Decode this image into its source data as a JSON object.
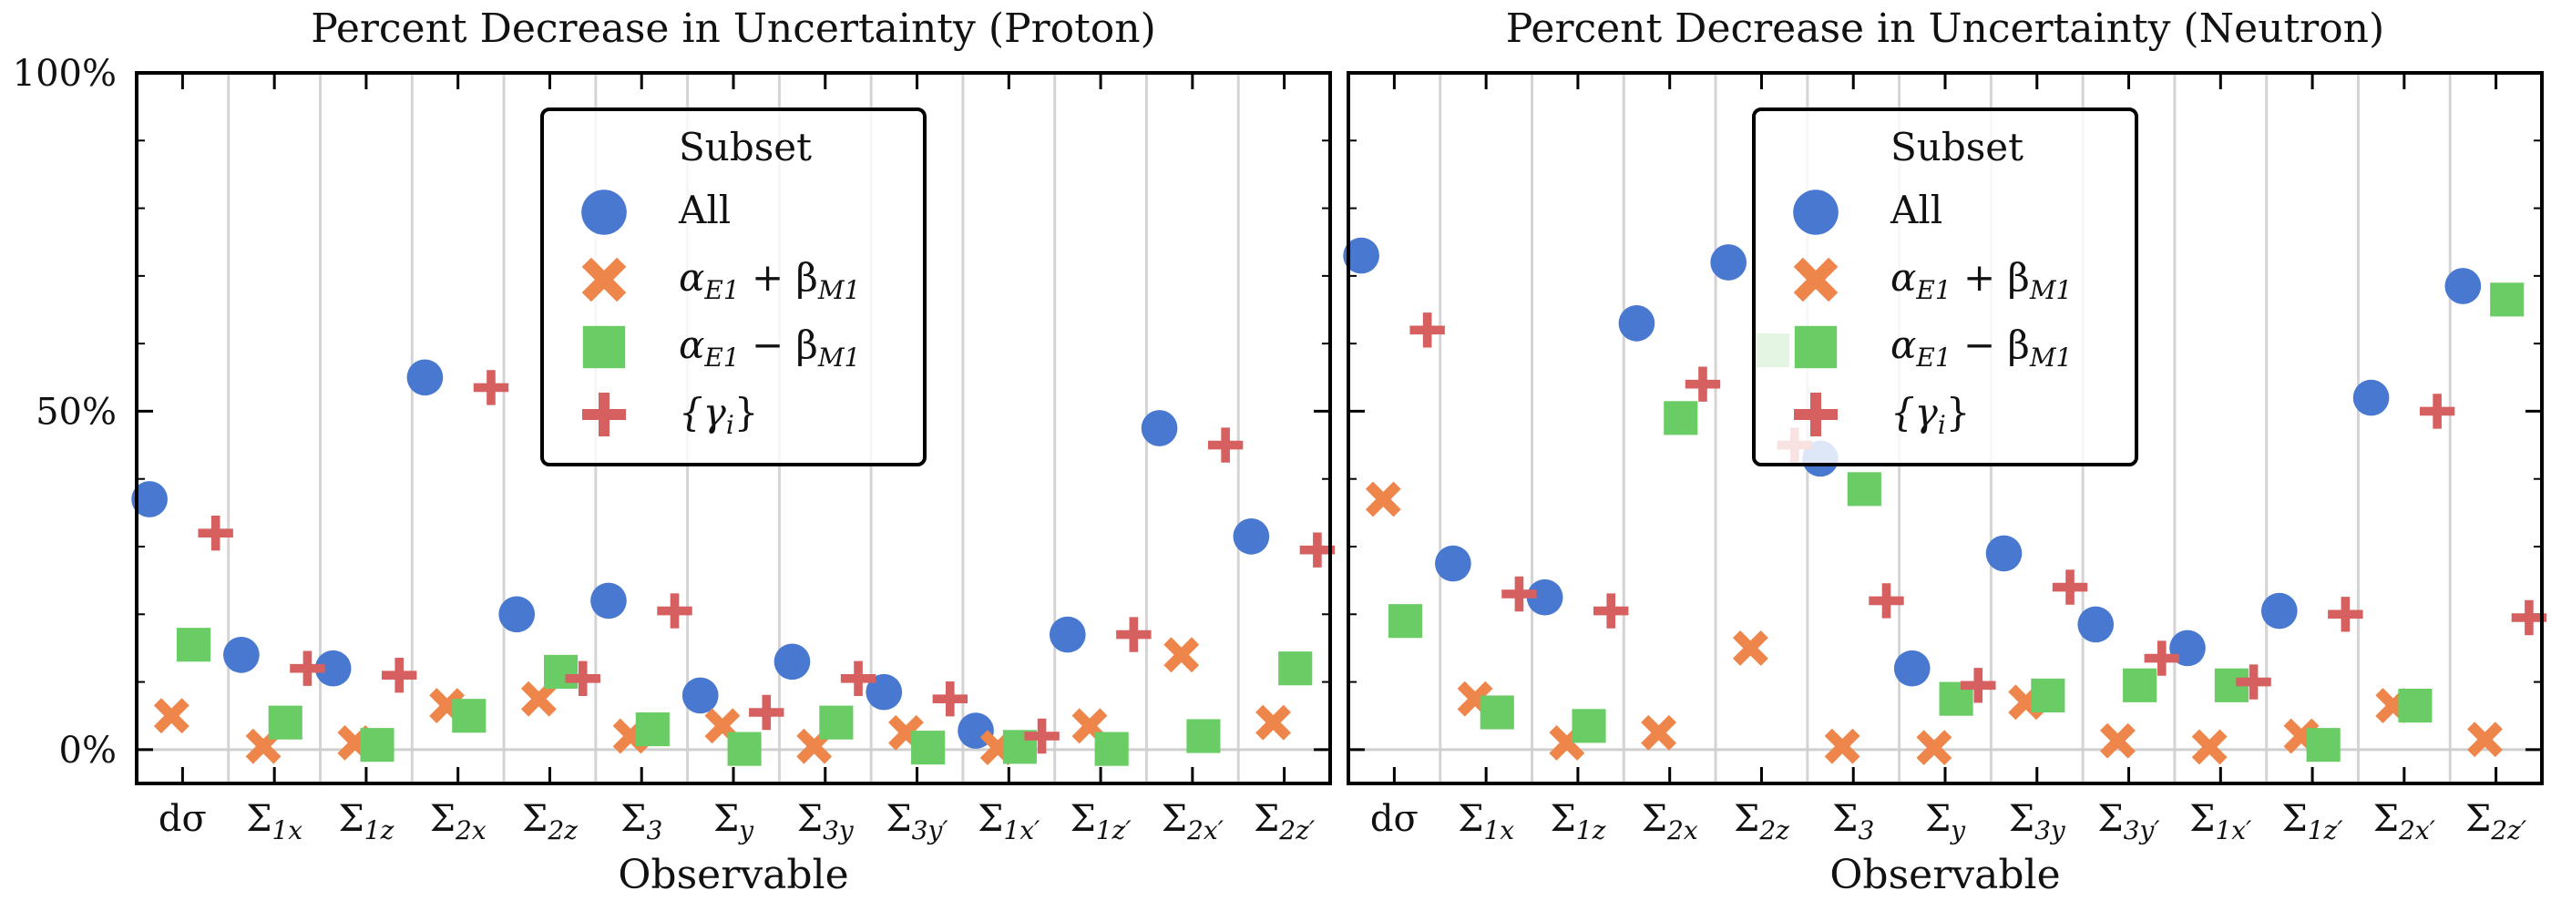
{
  "chart_data": [
    {
      "type": "scatter",
      "title": "Percent Decrease in Uncertainty (Proton)",
      "xlabel": "Observable",
      "ylabel": "",
      "ylim": [
        -5,
        100
      ],
      "yticks": [
        0,
        50,
        100
      ],
      "ytick_labels": [
        "0%",
        "50%",
        "100%"
      ],
      "grid": "vertical",
      "categories": [
        {
          "base": "dσ",
          "sub": ""
        },
        {
          "base": "Σ",
          "sub": "1x"
        },
        {
          "base": "Σ",
          "sub": "1z"
        },
        {
          "base": "Σ",
          "sub": "2x"
        },
        {
          "base": "Σ",
          "sub": "2z"
        },
        {
          "base": "Σ",
          "sub": "3"
        },
        {
          "base": "Σ",
          "sub": "y"
        },
        {
          "base": "Σ",
          "sub": "3y"
        },
        {
          "base": "Σ",
          "sub": "3y′"
        },
        {
          "base": "Σ",
          "sub": "1x′"
        },
        {
          "base": "Σ",
          "sub": "1z′"
        },
        {
          "base": "Σ",
          "sub": "2x′"
        },
        {
          "base": "Σ",
          "sub": "2z′"
        }
      ],
      "legend": {
        "title": "Subset",
        "placement": "upper-center",
        "entries": [
          {
            "marker": "circle",
            "text": "All"
          },
          {
            "marker": "x",
            "text": "α",
            "sub1": "E1",
            "op": " + β",
            "sub2": "M1"
          },
          {
            "marker": "square",
            "text": "α",
            "sub1": "E1",
            "op": " − β",
            "sub2": "M1"
          },
          {
            "marker": "plus",
            "text": "{γ",
            "sub1": "i",
            "op": "}",
            "sub2": ""
          }
        ]
      },
      "series": [
        {
          "marker": "circle",
          "color": "#4878d0",
          "values": [
            37,
            14,
            12,
            55,
            20,
            22,
            8,
            13,
            8.5,
            2.8,
            17,
            47.5,
            31.5
          ]
        },
        {
          "marker": "x",
          "color": "#ee854a",
          "values": [
            5,
            0.5,
            1,
            6.5,
            7.5,
            2,
            3.5,
            0.5,
            2.5,
            0.3,
            3.5,
            14,
            4
          ]
        },
        {
          "marker": "square",
          "color": "#6acc64",
          "values": [
            15.5,
            4,
            0.7,
            5,
            11.5,
            3,
            0.1,
            4,
            0.3,
            0.4,
            0.1,
            2,
            12
          ]
        },
        {
          "marker": "plus",
          "color": "#d65f5f",
          "values": [
            32,
            12,
            11,
            53.5,
            10.5,
            20.5,
            5.5,
            10.5,
            7.5,
            2,
            17,
            45,
            29.5
          ]
        }
      ]
    },
    {
      "type": "scatter",
      "title": "Percent Decrease in Uncertainty (Neutron)",
      "xlabel": "Observable",
      "ylabel": "",
      "ylim": [
        -5,
        100
      ],
      "yticks": [
        0,
        50,
        100
      ],
      "ytick_labels": [
        "",
        "",
        ""
      ],
      "grid": "vertical",
      "categories": [
        {
          "base": "dσ",
          "sub": ""
        },
        {
          "base": "Σ",
          "sub": "1x"
        },
        {
          "base": "Σ",
          "sub": "1z"
        },
        {
          "base": "Σ",
          "sub": "2x"
        },
        {
          "base": "Σ",
          "sub": "2z"
        },
        {
          "base": "Σ",
          "sub": "3"
        },
        {
          "base": "Σ",
          "sub": "y"
        },
        {
          "base": "Σ",
          "sub": "3y"
        },
        {
          "base": "Σ",
          "sub": "3y′"
        },
        {
          "base": "Σ",
          "sub": "1x′"
        },
        {
          "base": "Σ",
          "sub": "1z′"
        },
        {
          "base": "Σ",
          "sub": "2x′"
        },
        {
          "base": "Σ",
          "sub": "2z′"
        }
      ],
      "legend": {
        "title": "Subset",
        "placement": "upper-center",
        "entries": [
          {
            "marker": "circle",
            "text": "All"
          },
          {
            "marker": "x",
            "text": "α",
            "sub1": "E1",
            "op": " + β",
            "sub2": "M1"
          },
          {
            "marker": "square",
            "text": "α",
            "sub1": "E1",
            "op": " − β",
            "sub2": "M1"
          },
          {
            "marker": "plus",
            "text": "{γ",
            "sub1": "i",
            "op": "}",
            "sub2": ""
          }
        ]
      },
      "series": [
        {
          "marker": "circle",
          "color": "#4878d0",
          "values": [
            73,
            27.5,
            22.5,
            63,
            72,
            43,
            12,
            29,
            18.5,
            15,
            20.5,
            52,
            68.5
          ]
        },
        {
          "marker": "x",
          "color": "#ee854a",
          "values": [
            37,
            7.5,
            1,
            2.5,
            15,
            0.5,
            0.3,
            7,
            1.3,
            0.4,
            2,
            6.5,
            1.5
          ]
        },
        {
          "marker": "square",
          "color": "#6acc64",
          "values": [
            19,
            5.5,
            3.5,
            49,
            59,
            38.5,
            7.5,
            8,
            9.5,
            9.5,
            0.7,
            6.5,
            66.5
          ]
        },
        {
          "marker": "plus",
          "color": "#d65f5f",
          "values": [
            62,
            23,
            20.5,
            54,
            45,
            22,
            9.5,
            24,
            13.5,
            10,
            20,
            50,
            19.5
          ]
        }
      ]
    }
  ]
}
